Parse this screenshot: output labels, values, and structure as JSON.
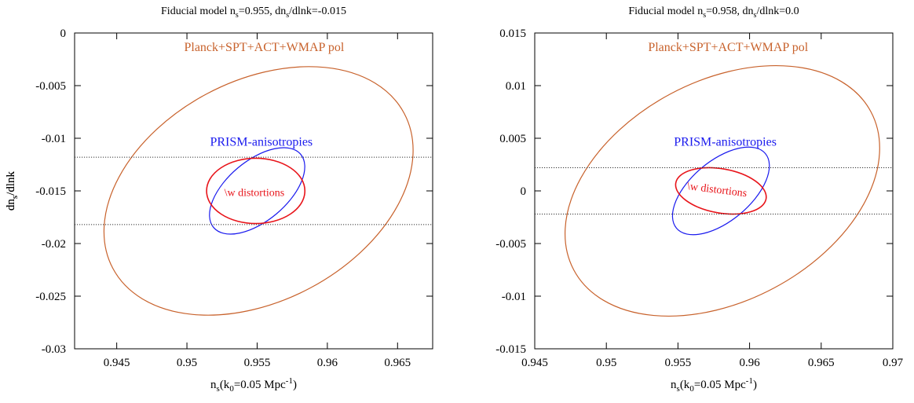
{
  "chart_data": [
    {
      "type": "scatter",
      "title": "Fiducial model n_s=0.955, dn_s/dlnk=-0.015",
      "title_parts": {
        "pre": "Fiducial model n",
        "sub1": "s",
        "mid": "=0.955, dn",
        "sub2": "s",
        "post": "/dlnk=-0.015"
      },
      "xlabel": "n_s(k_0=0.05 Mpc^-1)",
      "ylabel": "dn_s/dlnk",
      "xlim": [
        0.942,
        0.9675
      ],
      "ylim": [
        -0.03,
        0
      ],
      "xticks": [
        0.945,
        0.95,
        0.955,
        0.96,
        0.965
      ],
      "xtick_labels": [
        "0.945",
        "0.95",
        "0.955",
        "0.96",
        "0.965"
      ],
      "yticks": [
        0,
        -0.005,
        -0.01,
        -0.015,
        -0.02,
        -0.025,
        -0.03
      ],
      "ytick_labels": [
        "0",
        "-0.005",
        "-0.01",
        "-0.015",
        "-0.02",
        "-0.025",
        "-0.03"
      ],
      "grid": false,
      "series": [
        {
          "name": "Planck+SPT+ACT+WMAP pol",
          "kind": "ellipse",
          "color": "#c8622c",
          "center": [
            0.9551,
            -0.015
          ],
          "semi_axes": [
            0.01175,
            0.01045
          ],
          "angle_deg": 28,
          "label_at": [
            0.9555,
            -0.0017
          ]
        },
        {
          "name": "PRISM-anisotropies",
          "kind": "ellipse",
          "color": "#1a1aee",
          "center": [
            0.955,
            -0.015
          ],
          "semi_axes": [
            0.00405,
            0.00285
          ],
          "angle_deg": 40,
          "label_at": [
            0.9553,
            -0.0107
          ]
        },
        {
          "name": "\\w distortions",
          "kind": "ellipse",
          "color": "#e8141a",
          "center": [
            0.9549,
            -0.015
          ],
          "semi_axes": [
            0.0035,
            0.0031
          ],
          "angle_deg": 0,
          "label_at": [
            0.9548,
            -0.0155
          ]
        },
        {
          "name": "",
          "kind": "hline",
          "color": "#333333",
          "y": -0.0118
        },
        {
          "name": "",
          "kind": "hline",
          "color": "#333333",
          "y": -0.0182
        }
      ]
    },
    {
      "type": "scatter",
      "title": "Fiducial model n_s=0.958, dn_s/dlnk=0.0",
      "title_parts": {
        "pre": "Fiducial model n",
        "sub1": "s",
        "mid": "=0.958, dn",
        "sub2": "s",
        "post": "/dlnk=0.0"
      },
      "xlabel": "n_s(k_0=0.05 Mpc^-1)",
      "ylabel": "dn_s/dlnk",
      "xlim": [
        0.945,
        0.97
      ],
      "ylim": [
        -0.015,
        0.015
      ],
      "xticks": [
        0.945,
        0.95,
        0.955,
        0.96,
        0.965,
        0.97
      ],
      "xtick_labels": [
        "0.945",
        "0.95",
        "0.955",
        "0.96",
        "0.965",
        "0.97"
      ],
      "yticks": [
        0.015,
        0.01,
        0.005,
        0,
        -0.005,
        -0.01,
        -0.015
      ],
      "ytick_labels": [
        "0.015",
        "0.01",
        "0.005",
        "0",
        "-0.005",
        "-0.01",
        "-0.015"
      ],
      "grid": false,
      "series": [
        {
          "name": "Planck+SPT+ACT+WMAP pol",
          "kind": "ellipse",
          "color": "#c8622c",
          "center": [
            0.9581,
            0.0
          ],
          "semi_axes": [
            0.01175,
            0.01045
          ],
          "angle_deg": 28,
          "label_at": [
            0.9585,
            0.0133
          ]
        },
        {
          "name": "PRISM-anisotropies",
          "kind": "ellipse",
          "color": "#1a1aee",
          "center": [
            0.958,
            0.0
          ],
          "semi_axes": [
            0.00405,
            0.00285
          ],
          "angle_deg": 40,
          "label_at": [
            0.9583,
            0.0043
          ]
        },
        {
          "name": "\\w distortions",
          "kind": "ellipse",
          "color": "#e8141a",
          "center": [
            0.958,
            0.0
          ],
          "semi_axes": [
            0.0032,
            0.0021
          ],
          "angle_deg": -10,
          "label_at": [
            0.9577,
            -0.0002
          ],
          "label_rotate_deg": 7
        },
        {
          "name": "",
          "kind": "hline",
          "color": "#333333",
          "y": 0.0022
        },
        {
          "name": "",
          "kind": "hline",
          "color": "#333333",
          "y": -0.0022
        }
      ]
    }
  ]
}
